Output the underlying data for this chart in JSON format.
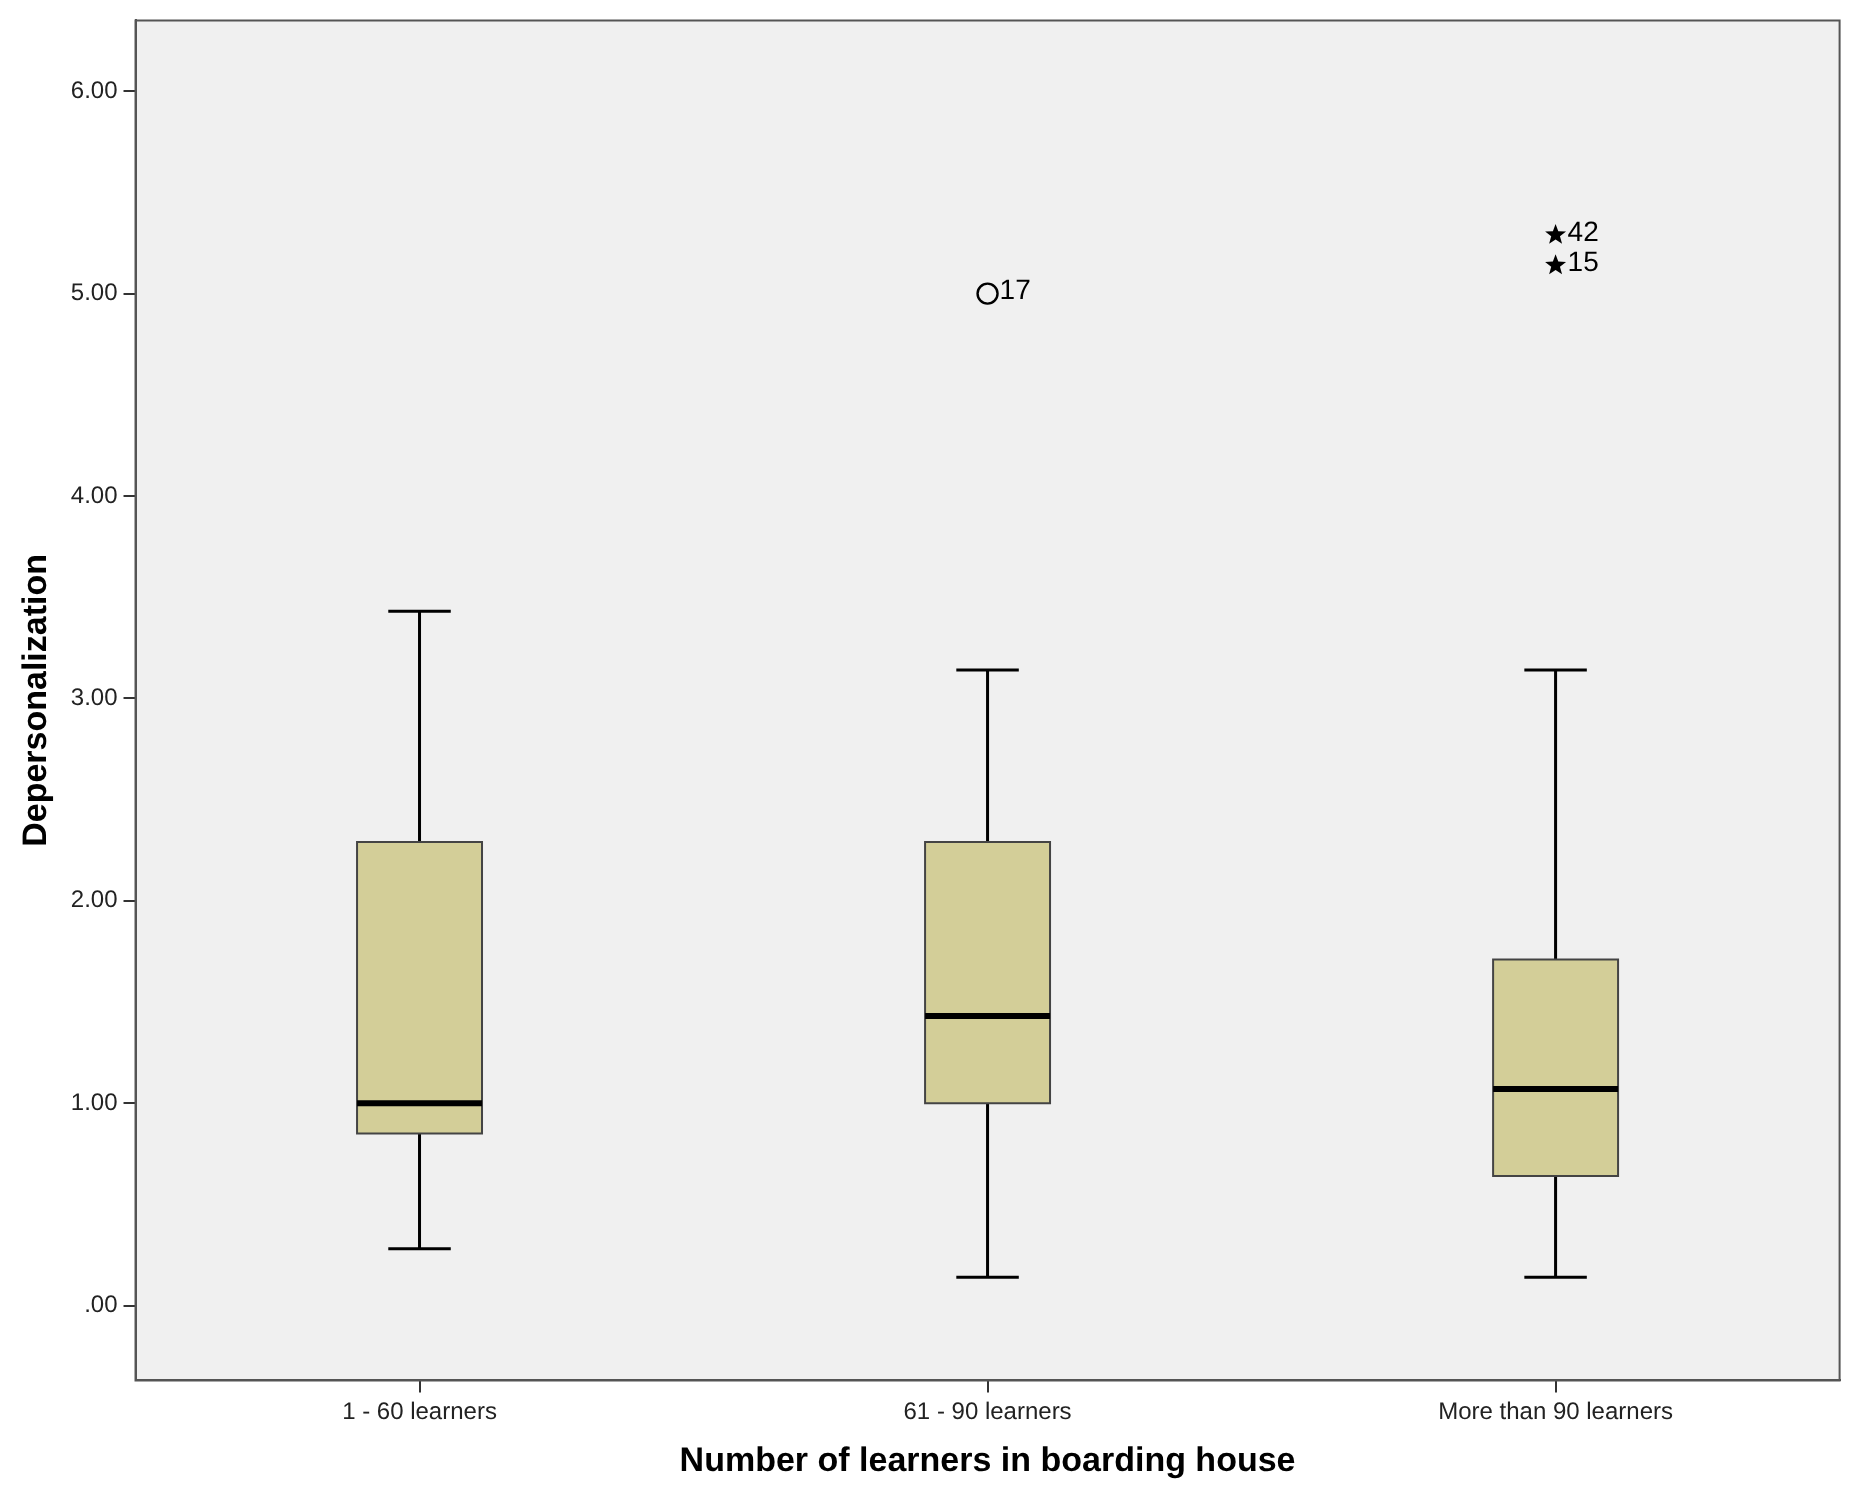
{
  "chart_data": {
    "type": "box",
    "xlabel": "Number of learners in boarding house",
    "ylabel": "Depersonalization",
    "categories": [
      "1 - 60 learners",
      "61 - 90 learners",
      "More than 90 learners"
    ],
    "ylim": [
      -0.37,
      6.35
    ],
    "yticks": [
      {
        "value": 0,
        "label": ".00"
      },
      {
        "value": 1,
        "label": "1.00"
      },
      {
        "value": 2,
        "label": "2.00"
      },
      {
        "value": 3,
        "label": "3.00"
      },
      {
        "value": 4,
        "label": "4.00"
      },
      {
        "value": 5,
        "label": "5.00"
      },
      {
        "value": 6,
        "label": "6.00"
      }
    ],
    "series": [
      {
        "color": "#d3ce98",
        "boxes": [
          {
            "low": 0.28,
            "q1": 0.85,
            "median": 1.0,
            "q3": 2.29,
            "high": 3.43
          },
          {
            "low": 0.14,
            "q1": 1.0,
            "median": 1.43,
            "q3": 2.29,
            "high": 3.14
          },
          {
            "low": 0.14,
            "q1": 0.64,
            "median": 1.07,
            "q3": 1.71,
            "high": 3.14
          }
        ]
      },
      {
        "type": "scatter",
        "marker": "circle",
        "color": "#000000",
        "x": [
          "61 - 90 learners"
        ],
        "values": [
          5.0
        ]
      },
      {
        "type": "scatter",
        "marker": "star",
        "color": "#000000",
        "x": [
          "More than 90 learners",
          "More than 90 learners"
        ],
        "values": [
          5.29,
          5.14
        ]
      }
    ],
    "annotations": [
      {
        "text": "17",
        "x": "61 - 90 learners",
        "y": 5.0
      },
      {
        "text": "42",
        "x": "More than 90 learners",
        "y": 5.29
      },
      {
        "text": "15",
        "x": "More than 90 learners",
        "y": 5.14
      }
    ],
    "grid": false
  }
}
